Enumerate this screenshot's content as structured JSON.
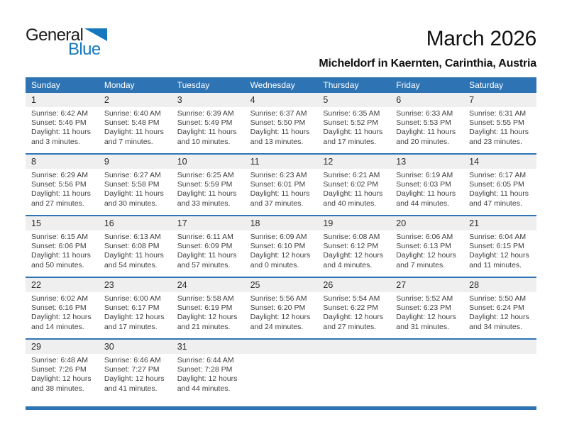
{
  "logo": {
    "part1": "General",
    "part2": "Blue",
    "triangle_color": "#1578BE"
  },
  "header": {
    "title": "March 2026",
    "subtitle": "Micheldorf in Kaernten, Carinthia, Austria"
  },
  "colors": {
    "header_blue": "#2E74B5",
    "band_gray": "#EFEFEF",
    "logo_blue": "#1578BE"
  },
  "weekday_headers": [
    "Sunday",
    "Monday",
    "Tuesday",
    "Wednesday",
    "Thursday",
    "Friday",
    "Saturday"
  ],
  "weeks": [
    [
      {
        "day": "1",
        "sunrise": "Sunrise: 6:42 AM",
        "sunset": "Sunset: 5:46 PM",
        "daylight1": "Daylight: 11 hours",
        "daylight2": "and 3 minutes."
      },
      {
        "day": "2",
        "sunrise": "Sunrise: 6:40 AM",
        "sunset": "Sunset: 5:48 PM",
        "daylight1": "Daylight: 11 hours",
        "daylight2": "and 7 minutes."
      },
      {
        "day": "3",
        "sunrise": "Sunrise: 6:39 AM",
        "sunset": "Sunset: 5:49 PM",
        "daylight1": "Daylight: 11 hours",
        "daylight2": "and 10 minutes."
      },
      {
        "day": "4",
        "sunrise": "Sunrise: 6:37 AM",
        "sunset": "Sunset: 5:50 PM",
        "daylight1": "Daylight: 11 hours",
        "daylight2": "and 13 minutes."
      },
      {
        "day": "5",
        "sunrise": "Sunrise: 6:35 AM",
        "sunset": "Sunset: 5:52 PM",
        "daylight1": "Daylight: 11 hours",
        "daylight2": "and 17 minutes."
      },
      {
        "day": "6",
        "sunrise": "Sunrise: 6:33 AM",
        "sunset": "Sunset: 5:53 PM",
        "daylight1": "Daylight: 11 hours",
        "daylight2": "and 20 minutes."
      },
      {
        "day": "7",
        "sunrise": "Sunrise: 6:31 AM",
        "sunset": "Sunset: 5:55 PM",
        "daylight1": "Daylight: 11 hours",
        "daylight2": "and 23 minutes."
      }
    ],
    [
      {
        "day": "8",
        "sunrise": "Sunrise: 6:29 AM",
        "sunset": "Sunset: 5:56 PM",
        "daylight1": "Daylight: 11 hours",
        "daylight2": "and 27 minutes."
      },
      {
        "day": "9",
        "sunrise": "Sunrise: 6:27 AM",
        "sunset": "Sunset: 5:58 PM",
        "daylight1": "Daylight: 11 hours",
        "daylight2": "and 30 minutes."
      },
      {
        "day": "10",
        "sunrise": "Sunrise: 6:25 AM",
        "sunset": "Sunset: 5:59 PM",
        "daylight1": "Daylight: 11 hours",
        "daylight2": "and 33 minutes."
      },
      {
        "day": "11",
        "sunrise": "Sunrise: 6:23 AM",
        "sunset": "Sunset: 6:01 PM",
        "daylight1": "Daylight: 11 hours",
        "daylight2": "and 37 minutes."
      },
      {
        "day": "12",
        "sunrise": "Sunrise: 6:21 AM",
        "sunset": "Sunset: 6:02 PM",
        "daylight1": "Daylight: 11 hours",
        "daylight2": "and 40 minutes."
      },
      {
        "day": "13",
        "sunrise": "Sunrise: 6:19 AM",
        "sunset": "Sunset: 6:03 PM",
        "daylight1": "Daylight: 11 hours",
        "daylight2": "and 44 minutes."
      },
      {
        "day": "14",
        "sunrise": "Sunrise: 6:17 AM",
        "sunset": "Sunset: 6:05 PM",
        "daylight1": "Daylight: 11 hours",
        "daylight2": "and 47 minutes."
      }
    ],
    [
      {
        "day": "15",
        "sunrise": "Sunrise: 6:15 AM",
        "sunset": "Sunset: 6:06 PM",
        "daylight1": "Daylight: 11 hours",
        "daylight2": "and 50 minutes."
      },
      {
        "day": "16",
        "sunrise": "Sunrise: 6:13 AM",
        "sunset": "Sunset: 6:08 PM",
        "daylight1": "Daylight: 11 hours",
        "daylight2": "and 54 minutes."
      },
      {
        "day": "17",
        "sunrise": "Sunrise: 6:11 AM",
        "sunset": "Sunset: 6:09 PM",
        "daylight1": "Daylight: 11 hours",
        "daylight2": "and 57 minutes."
      },
      {
        "day": "18",
        "sunrise": "Sunrise: 6:09 AM",
        "sunset": "Sunset: 6:10 PM",
        "daylight1": "Daylight: 12 hours",
        "daylight2": "and 0 minutes."
      },
      {
        "day": "19",
        "sunrise": "Sunrise: 6:08 AM",
        "sunset": "Sunset: 6:12 PM",
        "daylight1": "Daylight: 12 hours",
        "daylight2": "and 4 minutes."
      },
      {
        "day": "20",
        "sunrise": "Sunrise: 6:06 AM",
        "sunset": "Sunset: 6:13 PM",
        "daylight1": "Daylight: 12 hours",
        "daylight2": "and 7 minutes."
      },
      {
        "day": "21",
        "sunrise": "Sunrise: 6:04 AM",
        "sunset": "Sunset: 6:15 PM",
        "daylight1": "Daylight: 12 hours",
        "daylight2": "and 11 minutes."
      }
    ],
    [
      {
        "day": "22",
        "sunrise": "Sunrise: 6:02 AM",
        "sunset": "Sunset: 6:16 PM",
        "daylight1": "Daylight: 12 hours",
        "daylight2": "and 14 minutes."
      },
      {
        "day": "23",
        "sunrise": "Sunrise: 6:00 AM",
        "sunset": "Sunset: 6:17 PM",
        "daylight1": "Daylight: 12 hours",
        "daylight2": "and 17 minutes."
      },
      {
        "day": "24",
        "sunrise": "Sunrise: 5:58 AM",
        "sunset": "Sunset: 6:19 PM",
        "daylight1": "Daylight: 12 hours",
        "daylight2": "and 21 minutes."
      },
      {
        "day": "25",
        "sunrise": "Sunrise: 5:56 AM",
        "sunset": "Sunset: 6:20 PM",
        "daylight1": "Daylight: 12 hours",
        "daylight2": "and 24 minutes."
      },
      {
        "day": "26",
        "sunrise": "Sunrise: 5:54 AM",
        "sunset": "Sunset: 6:22 PM",
        "daylight1": "Daylight: 12 hours",
        "daylight2": "and 27 minutes."
      },
      {
        "day": "27",
        "sunrise": "Sunrise: 5:52 AM",
        "sunset": "Sunset: 6:23 PM",
        "daylight1": "Daylight: 12 hours",
        "daylight2": "and 31 minutes."
      },
      {
        "day": "28",
        "sunrise": "Sunrise: 5:50 AM",
        "sunset": "Sunset: 6:24 PM",
        "daylight1": "Daylight: 12 hours",
        "daylight2": "and 34 minutes."
      }
    ],
    [
      {
        "day": "29",
        "sunrise": "Sunrise: 6:48 AM",
        "sunset": "Sunset: 7:26 PM",
        "daylight1": "Daylight: 12 hours",
        "daylight2": "and 38 minutes."
      },
      {
        "day": "30",
        "sunrise": "Sunrise: 6:46 AM",
        "sunset": "Sunset: 7:27 PM",
        "daylight1": "Daylight: 12 hours",
        "daylight2": "and 41 minutes."
      },
      {
        "day": "31",
        "sunrise": "Sunrise: 6:44 AM",
        "sunset": "Sunset: 7:28 PM",
        "daylight1": "Daylight: 12 hours",
        "daylight2": "and 44 minutes."
      },
      null,
      null,
      null,
      null
    ]
  ]
}
